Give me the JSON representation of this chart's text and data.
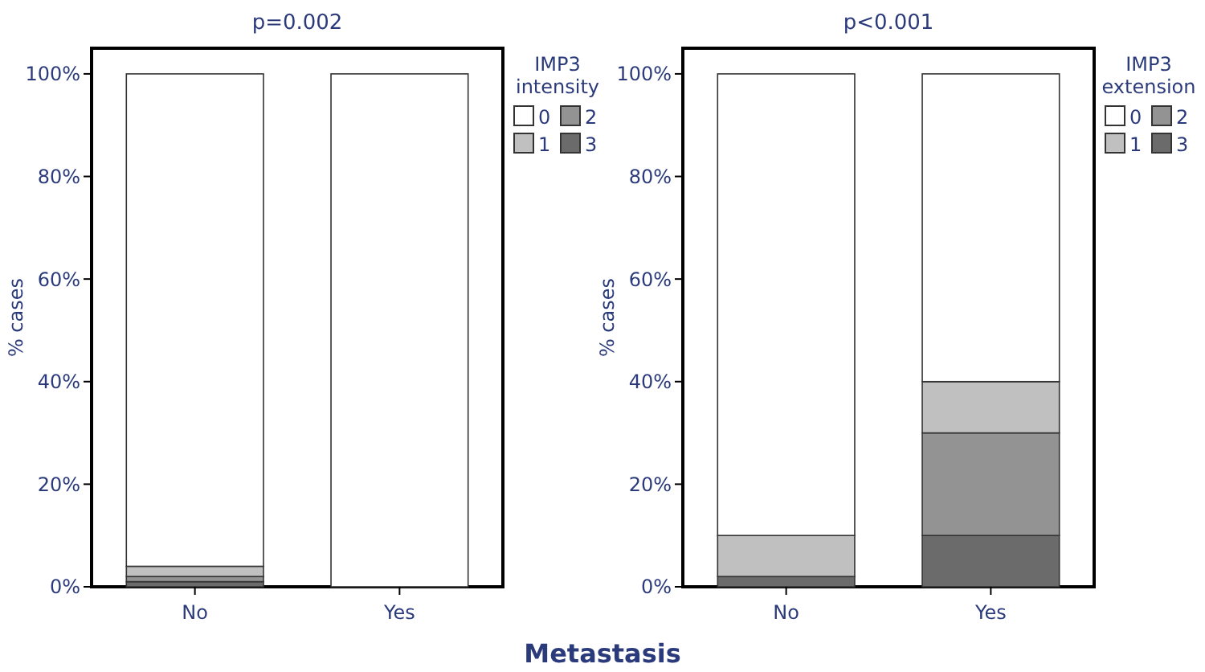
{
  "chart_data": [
    {
      "type": "bar",
      "stacked": true,
      "title": "p=0.002",
      "ylabel": "% cases",
      "xlabel": "Metastasis",
      "legend_title": "IMP3 intensity",
      "legend": "top right",
      "categories": [
        "No",
        "Yes"
      ],
      "ylim": [
        0,
        105
      ],
      "yticks": [
        {
          "value": 0,
          "label": "0%"
        },
        {
          "value": 20,
          "label": "20%"
        },
        {
          "value": 40,
          "label": "40%"
        },
        {
          "value": 60,
          "label": "60%"
        },
        {
          "value": 80,
          "label": "80%"
        },
        {
          "value": 100,
          "label": "100%"
        }
      ],
      "series": [
        {
          "name": "3",
          "color": "#6b6b6b",
          "values": [
            1,
            0
          ]
        },
        {
          "name": "2",
          "color": "#939393",
          "values": [
            1,
            0
          ]
        },
        {
          "name": "1",
          "color": "#c0c0c0",
          "values": [
            2,
            0
          ]
        },
        {
          "name": "0",
          "color": "#ffffff",
          "values": [
            96,
            100
          ]
        }
      ]
    },
    {
      "type": "bar",
      "stacked": true,
      "title": "p<0.001",
      "ylabel": "% cases",
      "legend_title": "IMP3 extension",
      "legend": "top right",
      "categories": [
        "No",
        "Yes"
      ],
      "ylim": [
        0,
        105
      ],
      "yticks": [
        {
          "value": 0,
          "label": "0%"
        },
        {
          "value": 20,
          "label": "20%"
        },
        {
          "value": 40,
          "label": "40%"
        },
        {
          "value": 60,
          "label": "60%"
        },
        {
          "value": 80,
          "label": "80%"
        },
        {
          "value": 100,
          "label": "100%"
        }
      ],
      "series": [
        {
          "name": "3",
          "color": "#6b6b6b",
          "values": [
            2,
            10
          ]
        },
        {
          "name": "2",
          "color": "#939393",
          "values": [
            0,
            20
          ]
        },
        {
          "name": "1",
          "color": "#c0c0c0",
          "values": [
            8,
            10
          ]
        },
        {
          "name": "0",
          "color": "#ffffff",
          "values": [
            90,
            60
          ]
        }
      ]
    }
  ]
}
